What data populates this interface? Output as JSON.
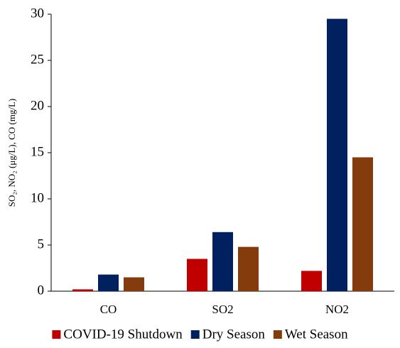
{
  "chart_data": {
    "type": "bar",
    "y_label": "SO₂, NO₂ (μg/L), CO (mg/L)",
    "categories": [
      "CO",
      "SO2",
      "NO2"
    ],
    "series": [
      {
        "name": "COVID-19 Shutdown",
        "color": "#c00000",
        "values": [
          0.2,
          3.5,
          2.2
        ]
      },
      {
        "name": "Dry Season",
        "color": "#002060",
        "values": [
          1.8,
          6.4,
          29.5
        ]
      },
      {
        "name": "Wet Season",
        "color": "#843c0c",
        "values": [
          1.5,
          4.8,
          14.5
        ]
      }
    ],
    "ylim": [
      0,
      30
    ],
    "yticks": [
      0,
      5,
      10,
      15,
      20,
      25,
      30
    ],
    "grid": false,
    "legend": "bottom"
  }
}
